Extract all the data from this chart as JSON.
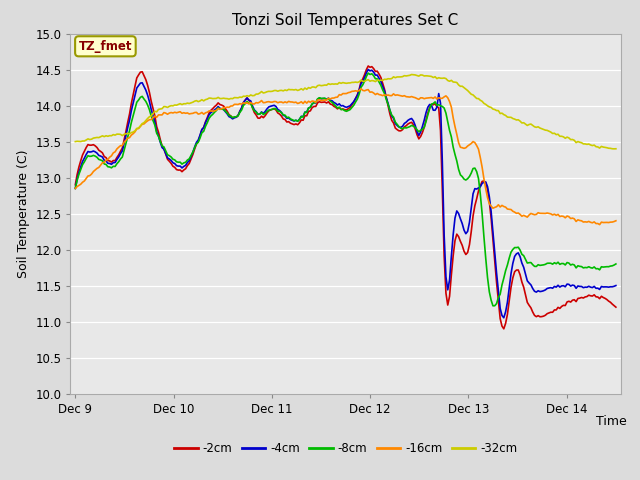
{
  "title": "Tonzi Soil Temperatures Set C",
  "xlabel": "Time",
  "ylabel": "Soil Temperature (C)",
  "ylim": [
    10.0,
    15.0
  ],
  "yticks": [
    10.0,
    10.5,
    11.0,
    11.5,
    12.0,
    12.5,
    13.0,
    13.5,
    14.0,
    14.5,
    15.0
  ],
  "bg_color": "#dcdcdc",
  "plot_bg": "#e8e8e8",
  "legend_label": "TZ_fmet",
  "legend_bg": "#ffffcc",
  "legend_border": "#999900",
  "series_colors": {
    "-2cm": "#cc0000",
    "-4cm": "#0000cc",
    "-8cm": "#00bb00",
    "-16cm": "#ff8800",
    "-32cm": "#cccc00"
  },
  "xtick_labels": [
    "Dec 9",
    "Dec 10",
    "Dec 11",
    "Dec 12",
    "Dec 13",
    "Dec 14"
  ],
  "xtick_pos": [
    0,
    1,
    2,
    3,
    4,
    5
  ],
  "xlim": [
    -0.05,
    5.55
  ],
  "n_points": 300
}
